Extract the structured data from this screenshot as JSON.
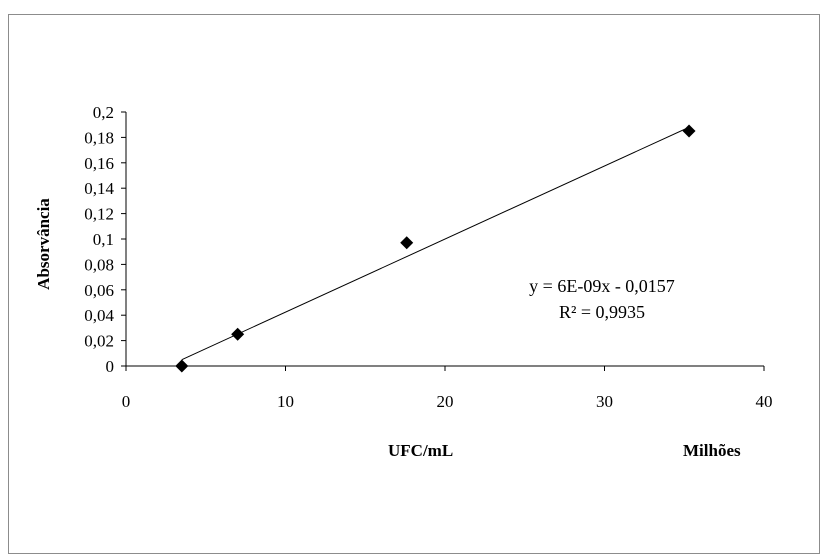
{
  "chart_data": {
    "type": "scatter",
    "ylabel": "Absorvância",
    "xlabel": "UFC/mL",
    "x_unit_label": "Milhões",
    "xlim": [
      0,
      40
    ],
    "ylim": [
      0,
      0.2
    ],
    "x_ticks": [
      0,
      10,
      20,
      30,
      40
    ],
    "x_tick_labels": [
      "0",
      "10",
      "20",
      "30",
      "40"
    ],
    "y_ticks": [
      0,
      0.02,
      0.04,
      0.06,
      0.08,
      0.1,
      0.12,
      0.14,
      0.16,
      0.18,
      0.2
    ],
    "y_tick_labels": [
      "0",
      "0,02",
      "0,04",
      "0,06",
      "0,08",
      "0,1",
      "0,12",
      "0,14",
      "0,16",
      "0,18",
      "0,2"
    ],
    "grid": false,
    "series": [
      {
        "marker": "diamond",
        "color": "#000000",
        "x": [
          3.5,
          7.0,
          17.6,
          35.3
        ],
        "y": [
          0.0,
          0.025,
          0.097,
          0.185
        ]
      }
    ],
    "trendline": {
      "type": "linear",
      "x": [
        3.5,
        35.3
      ],
      "y": [
        0.005,
        0.188
      ],
      "color": "#000000"
    },
    "annotations": {
      "equation": "y = 6E-09x - 0,0157",
      "r_squared": "R² = 0,9935"
    }
  }
}
